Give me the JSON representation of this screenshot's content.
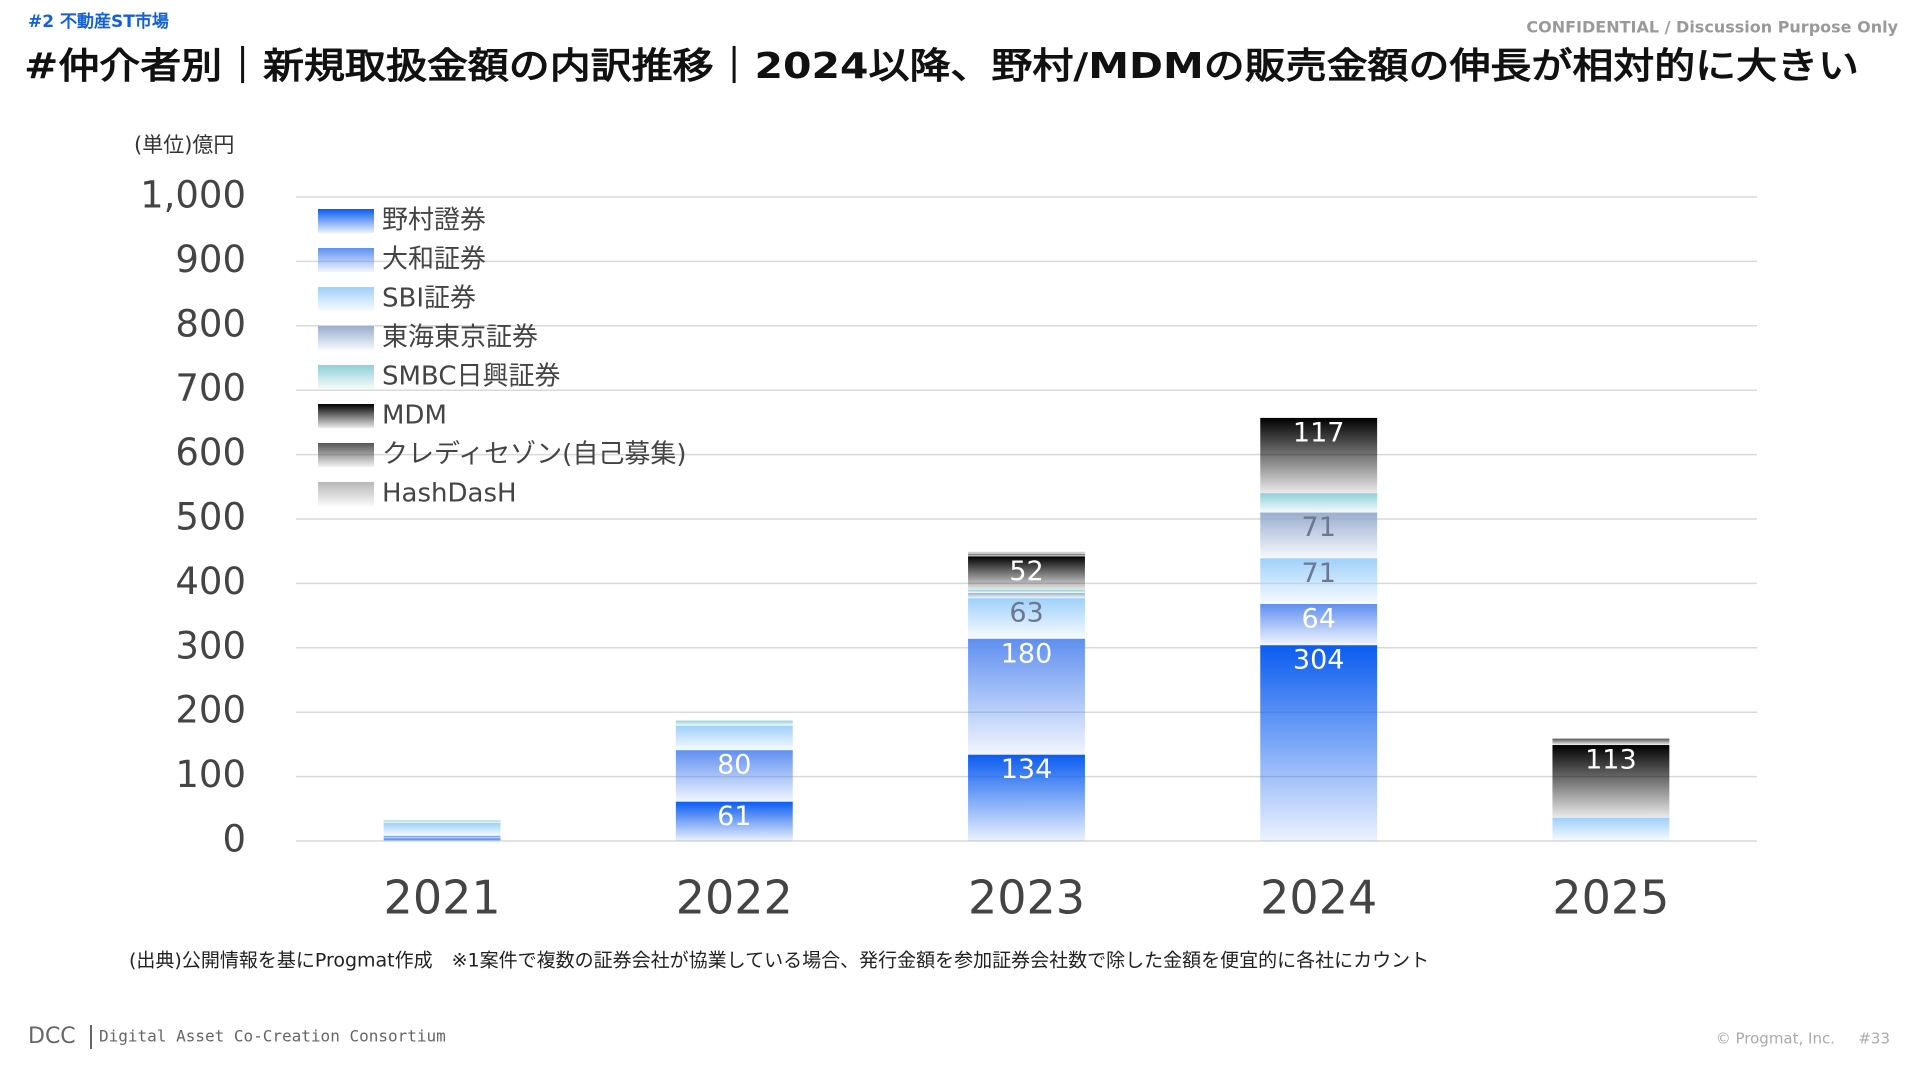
{
  "header": {
    "section": "#2  不動産ST市場",
    "confidential": "CONFIDENTIAL / Discussion Purpose Only",
    "title": "#仲介者別｜新規取扱金額の内訳推移｜2024以降、野村/MDMの販売金額の伸長が相対的に大きい"
  },
  "chart_data": {
    "type": "stacked_bar",
    "unit": "(単位)億円",
    "categories": [
      "2021",
      "2022",
      "2023",
      "2024",
      "2025"
    ],
    "series": [
      {
        "name": "野村證券",
        "color": "#0a5cf0",
        "values": [
          4,
          61,
          134,
          304,
          0
        ]
      },
      {
        "name": "大和証券",
        "color": "#5f8ff0",
        "values": [
          4,
          80,
          180,
          64,
          0
        ]
      },
      {
        "name": "SBI証券",
        "color": "#9fd0fa",
        "values": [
          20,
          38,
          63,
          71,
          36
        ]
      },
      {
        "name": "東海東京証券",
        "color": "#9aaed0",
        "values": [
          0,
          0,
          8,
          71,
          0
        ]
      },
      {
        "name": "SMBC日興証券",
        "color": "#8fd0d8",
        "values": [
          4,
          8,
          5,
          30,
          0
        ]
      },
      {
        "name": "MDM",
        "color": "#000000",
        "values": [
          0,
          0,
          52,
          117,
          113
        ]
      },
      {
        "name": "クレディセゾン(自己募集)",
        "color": "#555555",
        "values": [
          0,
          0,
          4,
          0,
          10
        ]
      },
      {
        "name": "HashDasH",
        "color": "#b8b8b8",
        "values": [
          0,
          0,
          3,
          0,
          0
        ]
      }
    ],
    "ylim": [
      0,
      1000
    ],
    "yticks": [
      0,
      100,
      200,
      300,
      400,
      500,
      600,
      700,
      800,
      900,
      {
        "value": 1000,
        "label": "1,000"
      }
    ],
    "grid": true
  },
  "footnote": "(出典)公開情報を基にProgmat作成　※1案件で複数の証券会社が協業している場合、発行金額を参加証券会社数で除した金額を便宜的に各社にカウント",
  "footer": {
    "logo": "DCC",
    "consortium": "Digital Asset Co-Creation Consortium",
    "copyright": "© Progmat, Inc.",
    "page": "#33"
  }
}
